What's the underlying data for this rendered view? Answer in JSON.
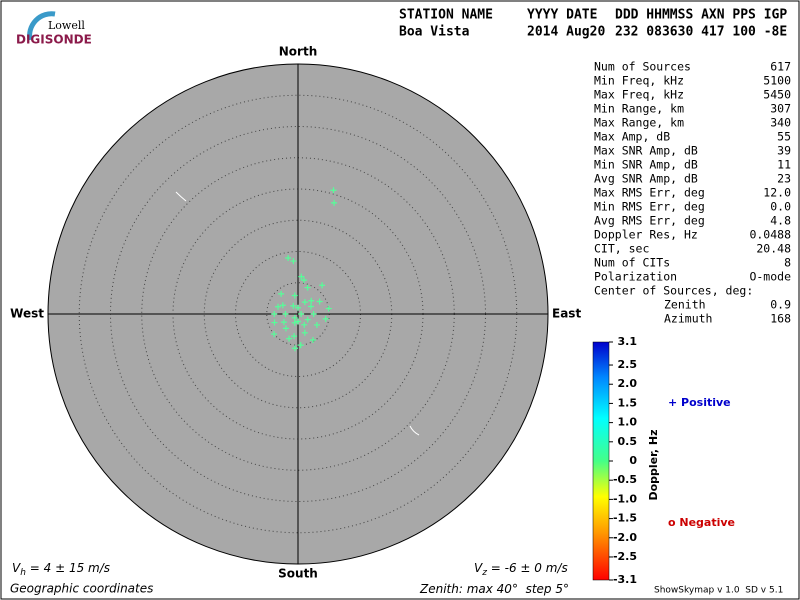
{
  "logo": {
    "top": "Lowell",
    "bottom": "DIGISONDE"
  },
  "header": {
    "row1": [
      "STATION NAME",
      "YYYY DATE",
      "DDD HHMMSS AXN PPS IGP"
    ],
    "row2": [
      "Boa Vista",
      "2014 Aug20",
      "232 083630 417 100 -8E"
    ]
  },
  "directions": {
    "north": "North",
    "south": "South",
    "west": "West",
    "east": "East"
  },
  "stats": [
    [
      "Num of Sources",
      "617"
    ],
    [
      "Min Freq, kHz",
      "5100"
    ],
    [
      "Max Freq, kHz",
      "5450"
    ],
    [
      "Min Range, km",
      "307"
    ],
    [
      "Max Range, km",
      "340"
    ],
    [
      "Max Amp, dB",
      "55"
    ],
    [
      "Max SNR Amp, dB",
      "39"
    ],
    [
      "Min SNR Amp, dB",
      "11"
    ],
    [
      "Avg SNR Amp, dB",
      "23"
    ],
    [
      "Max RMS Err, deg",
      "12.0"
    ],
    [
      "Min RMS Err, deg",
      "0.0"
    ],
    [
      "Avg RMS Err, deg",
      "4.8"
    ],
    [
      "Doppler Res, Hz",
      "0.0488"
    ],
    [
      "CIT, sec",
      "20.48"
    ],
    [
      "Num of CITs",
      "8"
    ],
    [
      "Polarization",
      "O-mode"
    ]
  ],
  "center": {
    "title": "Center of Sources, deg:",
    "rows": [
      [
        "Zenith",
        "0.9"
      ],
      [
        "Azimuth",
        "168"
      ]
    ]
  },
  "colorbar": {
    "title": "Doppler, Hz",
    "lim": [
      -3.1,
      3.1
    ],
    "ticks": [
      3.1,
      2.5,
      {
        "value": 2,
        "label": "2.0"
      },
      1.5,
      {
        "value": 1,
        "label": "1.0"
      },
      0.5,
      0,
      -0.5,
      {
        "value": -1,
        "label": "-1.0"
      },
      -1.5,
      {
        "value": -2,
        "label": "-2.0"
      },
      -2.5,
      -3.1
    ]
  },
  "legend": {
    "positive": "+ Positive",
    "negative": "o Negative"
  },
  "velocity": {
    "h": [
      "V",
      "h",
      " = 4 ± 15 m/s"
    ],
    "z": [
      "V",
      "z",
      " = -6 ± 0 m/s"
    ]
  },
  "footer": {
    "coords": "Geographic coordinates",
    "zenith_pre": "Zenith: max ",
    "deg": "°",
    "step_pre": "  step ",
    "zenith_max": 40,
    "zenith_step": 5,
    "version": "ShowSkymap v 1.0  SD v 5.1"
  },
  "sources": [
    [
      20.6,
      16
    ],
    [
      18.7,
      18
    ],
    [
      9.1,
      350
    ],
    [
      8.5,
      355
    ],
    [
      5.5,
      10
    ],
    [
      6,
      5
    ],
    [
      4.5,
      20
    ],
    [
      3,
      45
    ],
    [
      2.5,
      90
    ],
    [
      3.5,
      120
    ],
    [
      2,
      150
    ],
    [
      1.5,
      200
    ],
    [
      3,
      220
    ],
    [
      4,
      250
    ],
    [
      3.8,
      270
    ],
    [
      2.8,
      300
    ],
    [
      1,
      0
    ],
    [
      0.5,
      90
    ],
    [
      1.2,
      180
    ],
    [
      2,
      270
    ],
    [
      4.5,
      100
    ],
    [
      5,
      80
    ],
    [
      4,
      60
    ],
    [
      2.2,
      30
    ],
    [
      3.2,
      160
    ],
    [
      3.6,
      190
    ],
    [
      4.2,
      200
    ],
    [
      5,
      175
    ],
    [
      5.5,
      185
    ],
    [
      1.8,
      120
    ],
    [
      2.6,
      240
    ],
    [
      3.4,
      290
    ],
    [
      1.5,
      330
    ],
    [
      0.8,
      220
    ],
    [
      2.4,
      60
    ],
    [
      4.8,
      150
    ],
    [
      3,
      350
    ],
    [
      5,
      230
    ],
    [
      4.2,
      320
    ],
    [
      6,
      40
    ]
  ],
  "source_color": "#55ff99"
}
